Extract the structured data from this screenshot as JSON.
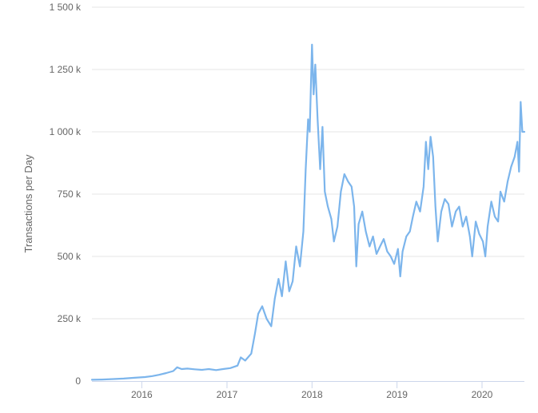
{
  "chart_data": {
    "type": "line",
    "title": "",
    "xlabel": "",
    "ylabel": "Transactions per Day",
    "grid": true,
    "legend": "none",
    "ylim": [
      0,
      1500000
    ],
    "xlim": [
      "2015-06-01",
      "2020-07-01"
    ],
    "yticks": [
      {
        "value": 0,
        "label": "0"
      },
      {
        "value": 250000,
        "label": "250 k"
      },
      {
        "value": 500000,
        "label": "500 k"
      },
      {
        "value": 750000,
        "label": "750 k"
      },
      {
        "value": 1000000,
        "label": "1 000 k"
      },
      {
        "value": 1250000,
        "label": "1 250 k"
      },
      {
        "value": 1500000,
        "label": "1 500 k"
      }
    ],
    "xticks": [
      {
        "value": "2016-01-01",
        "label": "2016"
      },
      {
        "value": "2017-01-01",
        "label": "2017"
      },
      {
        "value": "2018-01-01",
        "label": "2018"
      },
      {
        "value": "2019-01-01",
        "label": "2019"
      },
      {
        "value": "2020-01-01",
        "label": "2020"
      }
    ],
    "series": [
      {
        "color": "#7cb5ec",
        "points": [
          [
            "2015-06-01",
            5000
          ],
          [
            "2015-07-15",
            6000
          ],
          [
            "2015-09-01",
            8000
          ],
          [
            "2015-10-15",
            10000
          ],
          [
            "2015-12-01",
            13000
          ],
          [
            "2016-01-15",
            16000
          ],
          [
            "2016-02-15",
            20000
          ],
          [
            "2016-03-15",
            25000
          ],
          [
            "2016-04-15",
            32000
          ],
          [
            "2016-05-15",
            40000
          ],
          [
            "2016-06-01",
            55000
          ],
          [
            "2016-06-20",
            48000
          ],
          [
            "2016-07-15",
            50000
          ],
          [
            "2016-08-15",
            47000
          ],
          [
            "2016-09-15",
            45000
          ],
          [
            "2016-10-15",
            48000
          ],
          [
            "2016-11-15",
            44000
          ],
          [
            "2016-12-15",
            48000
          ],
          [
            "2017-01-15",
            52000
          ],
          [
            "2017-02-15",
            62000
          ],
          [
            "2017-03-01",
            95000
          ],
          [
            "2017-03-20",
            82000
          ],
          [
            "2017-04-15",
            110000
          ],
          [
            "2017-05-01",
            190000
          ],
          [
            "2017-05-15",
            270000
          ],
          [
            "2017-06-01",
            300000
          ],
          [
            "2017-06-20",
            250000
          ],
          [
            "2017-07-10",
            220000
          ],
          [
            "2017-07-25",
            330000
          ],
          [
            "2017-08-10",
            410000
          ],
          [
            "2017-08-25",
            340000
          ],
          [
            "2017-09-10",
            480000
          ],
          [
            "2017-09-25",
            360000
          ],
          [
            "2017-10-10",
            400000
          ],
          [
            "2017-10-25",
            540000
          ],
          [
            "2017-11-10",
            460000
          ],
          [
            "2017-11-25",
            600000
          ],
          [
            "2017-12-05",
            850000
          ],
          [
            "2017-12-15",
            1050000
          ],
          [
            "2017-12-22",
            1000000
          ],
          [
            "2018-01-01",
            1350000
          ],
          [
            "2018-01-08",
            1150000
          ],
          [
            "2018-01-15",
            1270000
          ],
          [
            "2018-01-25",
            1050000
          ],
          [
            "2018-02-05",
            850000
          ],
          [
            "2018-02-15",
            1020000
          ],
          [
            "2018-02-25",
            760000
          ],
          [
            "2018-03-10",
            700000
          ],
          [
            "2018-03-25",
            650000
          ],
          [
            "2018-04-05",
            560000
          ],
          [
            "2018-04-20",
            620000
          ],
          [
            "2018-05-05",
            760000
          ],
          [
            "2018-05-20",
            830000
          ],
          [
            "2018-06-05",
            800000
          ],
          [
            "2018-06-20",
            780000
          ],
          [
            "2018-07-01",
            700000
          ],
          [
            "2018-07-10",
            460000
          ],
          [
            "2018-07-20",
            630000
          ],
          [
            "2018-08-05",
            680000
          ],
          [
            "2018-08-20",
            600000
          ],
          [
            "2018-09-05",
            540000
          ],
          [
            "2018-09-20",
            580000
          ],
          [
            "2018-10-05",
            510000
          ],
          [
            "2018-10-20",
            540000
          ],
          [
            "2018-11-05",
            570000
          ],
          [
            "2018-11-20",
            520000
          ],
          [
            "2018-12-05",
            500000
          ],
          [
            "2018-12-20",
            470000
          ],
          [
            "2019-01-05",
            530000
          ],
          [
            "2019-01-15",
            420000
          ],
          [
            "2019-01-25",
            520000
          ],
          [
            "2019-02-10",
            580000
          ],
          [
            "2019-02-25",
            600000
          ],
          [
            "2019-03-10",
            660000
          ],
          [
            "2019-03-25",
            720000
          ],
          [
            "2019-04-10",
            680000
          ],
          [
            "2019-04-25",
            780000
          ],
          [
            "2019-05-05",
            960000
          ],
          [
            "2019-05-15",
            850000
          ],
          [
            "2019-05-25",
            980000
          ],
          [
            "2019-06-05",
            900000
          ],
          [
            "2019-06-15",
            700000
          ],
          [
            "2019-06-25",
            560000
          ],
          [
            "2019-07-10",
            680000
          ],
          [
            "2019-07-25",
            730000
          ],
          [
            "2019-08-10",
            710000
          ],
          [
            "2019-08-25",
            620000
          ],
          [
            "2019-09-10",
            680000
          ],
          [
            "2019-09-25",
            700000
          ],
          [
            "2019-10-10",
            620000
          ],
          [
            "2019-10-25",
            660000
          ],
          [
            "2019-11-10",
            580000
          ],
          [
            "2019-11-20",
            500000
          ],
          [
            "2019-12-05",
            640000
          ],
          [
            "2019-12-20",
            590000
          ],
          [
            "2020-01-05",
            560000
          ],
          [
            "2020-01-15",
            500000
          ],
          [
            "2020-01-25",
            620000
          ],
          [
            "2020-02-10",
            720000
          ],
          [
            "2020-02-25",
            660000
          ],
          [
            "2020-03-10",
            640000
          ],
          [
            "2020-03-20",
            760000
          ],
          [
            "2020-04-05",
            720000
          ],
          [
            "2020-04-20",
            800000
          ],
          [
            "2020-05-05",
            860000
          ],
          [
            "2020-05-20",
            900000
          ],
          [
            "2020-06-01",
            960000
          ],
          [
            "2020-06-08",
            840000
          ],
          [
            "2020-06-15",
            1120000
          ],
          [
            "2020-06-22",
            1000000
          ],
          [
            "2020-07-01",
            1000000
          ]
        ]
      }
    ]
  }
}
